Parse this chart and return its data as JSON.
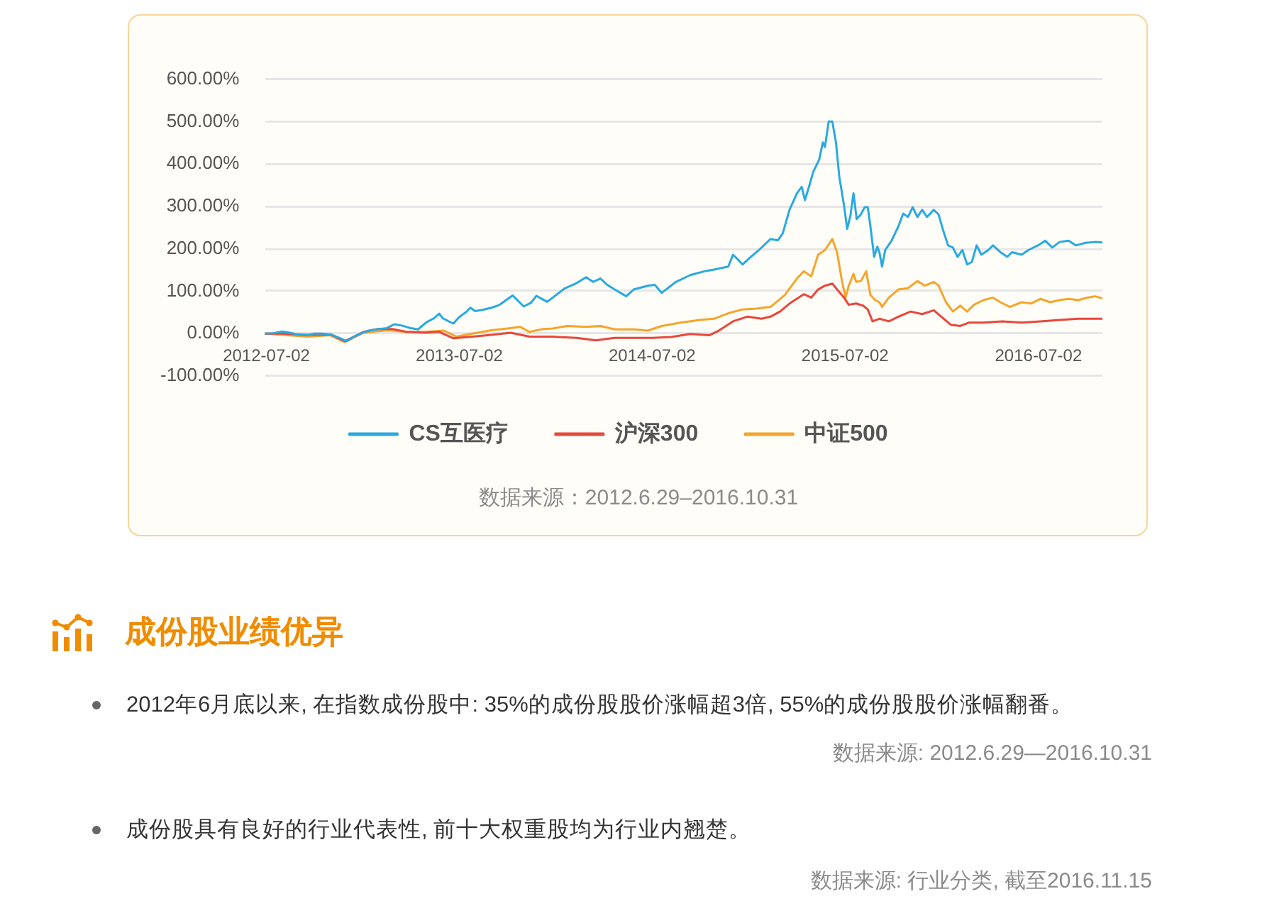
{
  "chart_data": {
    "type": "line",
    "xlim": [
      "2012-06-29",
      "2016-10-31"
    ],
    "xticks": [
      "2012-07-02",
      "2013-07-02",
      "2014-07-02",
      "2015-07-02",
      "2016-07-02"
    ],
    "ylim": [
      -100,
      600
    ],
    "yticks": [
      {
        "value": -100,
        "label": "-100.00%"
      },
      {
        "value": 0,
        "label": "0.00%"
      },
      {
        "value": 100,
        "label": "100.00%"
      },
      {
        "value": 200,
        "label": "200.00%"
      },
      {
        "value": 300,
        "label": "300.00%"
      },
      {
        "value": 400,
        "label": "400.00%"
      },
      {
        "value": 500,
        "label": "500.00%"
      },
      {
        "value": 600,
        "label": "600.00%"
      }
    ],
    "grid": "y",
    "legend": "bottom",
    "series": [
      {
        "name": "CS互医疗",
        "color": "#29a9e1",
        "x": [
          "2012-06-29",
          "2012-07-15",
          "2012-08-01",
          "2012-08-15",
          "2012-09-01",
          "2012-09-15",
          "2012-10-01",
          "2012-10-15",
          "2012-11-01",
          "2012-11-15",
          "2012-12-01",
          "2012-12-15",
          "2013-01-01",
          "2013-01-15",
          "2013-02-01",
          "2013-02-15",
          "2013-03-01",
          "2013-03-15",
          "2013-04-01",
          "2013-04-15",
          "2013-05-01",
          "2013-05-15",
          "2013-05-25",
          "2013-06-01",
          "2013-06-15",
          "2013-06-21",
          "2013-07-01",
          "2013-07-15",
          "2013-07-23",
          "2013-08-01",
          "2013-08-15",
          "2013-09-01",
          "2013-09-15",
          "2013-10-01",
          "2013-10-11",
          "2013-11-01",
          "2013-11-15",
          "2013-11-25",
          "2013-12-15",
          "2013-12-26",
          "2014-01-18",
          "2014-02-09",
          "2014-02-27",
          "2014-03-12",
          "2014-03-26",
          "2014-04-08",
          "2014-04-22",
          "2014-05-14",
          "2014-05-28",
          "2014-06-24",
          "2014-07-07",
          "2014-07-20",
          "2014-08-16",
          "2014-09-12",
          "2014-10-09",
          "2014-10-27",
          "2014-11-23",
          "2014-12-02",
          "2014-12-11",
          "2014-12-20",
          "2015-01-02",
          "2015-01-20",
          "2015-02-11",
          "2015-02-25",
          "2015-03-06",
          "2015-03-19",
          "2015-04-02",
          "2015-04-11",
          "2015-04-17",
          "2015-04-24",
          "2015-05-03",
          "2015-05-14",
          "2015-05-21",
          "2015-05-25",
          "2015-06-01",
          "2015-06-08",
          "2015-06-15",
          "2015-06-21",
          "2015-06-30",
          "2015-07-06",
          "2015-07-12",
          "2015-07-18",
          "2015-07-24",
          "2015-08-01",
          "2015-08-08",
          "2015-08-14",
          "2015-08-19",
          "2015-08-26",
          "2015-09-01",
          "2015-09-05",
          "2015-09-10",
          "2015-09-16",
          "2015-09-28",
          "2015-10-11",
          "2015-10-20",
          "2015-10-29",
          "2015-11-07",
          "2015-11-16",
          "2015-11-25",
          "2015-12-04",
          "2015-12-17",
          "2015-12-26",
          "2016-01-04",
          "2016-01-13",
          "2016-01-22",
          "2016-01-31",
          "2016-02-09",
          "2016-02-18",
          "2016-02-27",
          "2016-03-07",
          "2016-03-16",
          "2016-03-29",
          "2016-04-07",
          "2016-04-21",
          "2016-05-04",
          "2016-05-13",
          "2016-05-31",
          "2016-06-13",
          "2016-07-01",
          "2016-07-15",
          "2016-07-28",
          "2016-08-11",
          "2016-08-28",
          "2016-09-11",
          "2016-09-29",
          "2016-10-17",
          "2016-10-31"
        ],
        "values": [
          0,
          1,
          5,
          2,
          -3,
          -4,
          0,
          0,
          -2,
          -9,
          -18,
          -7,
          3,
          8,
          11,
          13,
          22,
          19,
          13,
          10,
          27,
          36,
          47,
          36,
          27,
          24,
          38,
          51,
          61,
          53,
          56,
          61,
          67,
          81,
          90,
          64,
          73,
          89,
          75,
          85,
          107,
          119,
          133,
          122,
          130,
          115,
          104,
          88,
          104,
          113,
          115,
          96,
          122,
          138,
          147,
          151,
          158,
          186,
          175,
          163,
          178,
          197,
          223,
          220,
          236,
          292,
          331,
          346,
          315,
          343,
          382,
          410,
          451,
          440,
          500,
          500,
          449,
          371,
          303,
          247,
          277,
          331,
          270,
          281,
          298,
          298,
          253,
          181,
          205,
          192,
          158,
          197,
          219,
          253,
          283,
          275,
          298,
          275,
          292,
          275,
          292,
          281,
          242,
          208,
          203,
          181,
          197,
          163,
          169,
          208,
          186,
          197,
          208,
          192,
          181,
          192,
          186,
          197,
          208,
          219,
          203,
          216,
          219,
          208,
          214,
          216,
          215
        ]
      },
      {
        "name": "沪深300",
        "color": "#e8473b",
        "x": [
          "2012-06-29",
          "2012-08-03",
          "2012-09-17",
          "2012-10-31",
          "2012-11-27",
          "2013-01-02",
          "2013-01-29",
          "2013-02-25",
          "2013-03-24",
          "2013-04-29",
          "2013-05-25",
          "2013-06-21",
          "2013-07-27",
          "2013-09-01",
          "2013-10-07",
          "2013-11-12",
          "2013-12-26",
          "2014-01-04",
          "2014-02-09",
          "2014-03-17",
          "2014-04-22",
          "2014-05-28",
          "2014-07-02",
          "2014-08-07",
          "2014-09-12",
          "2014-10-18",
          "2014-11-05",
          "2014-12-02",
          "2014-12-29",
          "2015-01-25",
          "2015-02-11",
          "2015-03-01",
          "2015-03-19",
          "2015-04-15",
          "2015-04-29",
          "2015-05-12",
          "2015-05-25",
          "2015-06-08",
          "2015-06-17",
          "2015-06-30",
          "2015-07-09",
          "2015-07-23",
          "2015-08-05",
          "2015-08-14",
          "2015-08-23",
          "2015-09-05",
          "2015-09-23",
          "2015-10-11",
          "2015-11-03",
          "2015-11-25",
          "2015-12-17",
          "2015-12-31",
          "2016-01-18",
          "2016-02-05",
          "2016-02-22",
          "2016-03-20",
          "2016-04-25",
          "2016-05-31",
          "2016-07-06",
          "2016-08-11",
          "2016-09-15",
          "2016-10-31"
        ],
        "values": [
          0,
          0,
          -3,
          -2,
          -18,
          4,
          11,
          11,
          4,
          2,
          4,
          -11,
          -7,
          -3,
          2,
          -7,
          -7,
          -8,
          -10,
          -16,
          -10,
          -10,
          -10,
          -8,
          -1,
          -4,
          7,
          29,
          40,
          35,
          40,
          52,
          71,
          93,
          85,
          104,
          113,
          118,
          104,
          85,
          68,
          71,
          66,
          57,
          29,
          35,
          29,
          40,
          52,
          46,
          55,
          40,
          21,
          18,
          26,
          26,
          29,
          26,
          29,
          32,
          35,
          35
        ]
      },
      {
        "name": "中证500",
        "color": "#f5a52a",
        "x": [
          "2012-06-29",
          "2012-08-03",
          "2012-09-17",
          "2012-10-31",
          "2012-11-27",
          "2013-01-02",
          "2013-02-16",
          "2013-03-24",
          "2013-04-29",
          "2013-06-03",
          "2013-06-26",
          "2013-07-27",
          "2013-09-01",
          "2013-10-07",
          "2013-10-25",
          "2013-11-12",
          "2013-12-08",
          "2013-12-26",
          "2014-01-22",
          "2014-02-27",
          "2014-03-26",
          "2014-04-22",
          "2014-05-28",
          "2014-06-24",
          "2014-07-20",
          "2014-08-25",
          "2014-09-30",
          "2014-10-27",
          "2014-11-23",
          "2014-12-20",
          "2015-01-15",
          "2015-02-11",
          "2015-03-10",
          "2015-04-02",
          "2015-04-15",
          "2015-04-29",
          "2015-05-12",
          "2015-05-25",
          "2015-06-08",
          "2015-06-17",
          "2015-06-26",
          "2015-07-03",
          "2015-07-09",
          "2015-07-18",
          "2015-07-23",
          "2015-08-01",
          "2015-08-11",
          "2015-08-19",
          "2015-08-28",
          "2015-09-05",
          "2015-09-10",
          "2015-09-23",
          "2015-10-11",
          "2015-10-29",
          "2015-11-16",
          "2015-11-30",
          "2015-12-17",
          "2015-12-26",
          "2016-01-09",
          "2016-01-22",
          "2016-02-05",
          "2016-02-18",
          "2016-03-02",
          "2016-03-20",
          "2016-04-07",
          "2016-04-21",
          "2016-05-09",
          "2016-05-31",
          "2016-06-18",
          "2016-07-06",
          "2016-07-24",
          "2016-08-11",
          "2016-08-28",
          "2016-09-15",
          "2016-10-03",
          "2016-10-17",
          "2016-10-31"
        ],
        "values": [
          0,
          -3,
          -7,
          -4,
          -20,
          2,
          8,
          4,
          4,
          7,
          -7,
          0,
          8,
          13,
          16,
          4,
          11,
          12,
          18,
          16,
          18,
          10,
          10,
          7,
          18,
          26,
          32,
          35,
          48,
          57,
          59,
          63,
          91,
          130,
          147,
          135,
          186,
          197,
          223,
          191,
          125,
          85,
          113,
          141,
          122,
          124,
          147,
          91,
          79,
          74,
          63,
          85,
          104,
          107,
          124,
          113,
          122,
          113,
          74,
          52,
          66,
          52,
          68,
          79,
          85,
          74,
          63,
          74,
          71,
          82,
          74,
          79,
          82,
          79,
          85,
          88,
          83
        ]
      }
    ],
    "annotations": [
      "数据来源：2012.6.29–2016.10.31",
      "成份股业绩优异",
      "2012年6月底以来, 在指数成份股中: 35%的成份股股价涨幅超3倍, 55%的成份股股价涨幅翻番。",
      "数据来源: 2012.6.29—2016.10.31",
      "成份股具有良好的行业代表性, 前十大权重股均为行业内翘楚。",
      "数据来源: 行业分类, 截至2016.11.15"
    ]
  }
}
